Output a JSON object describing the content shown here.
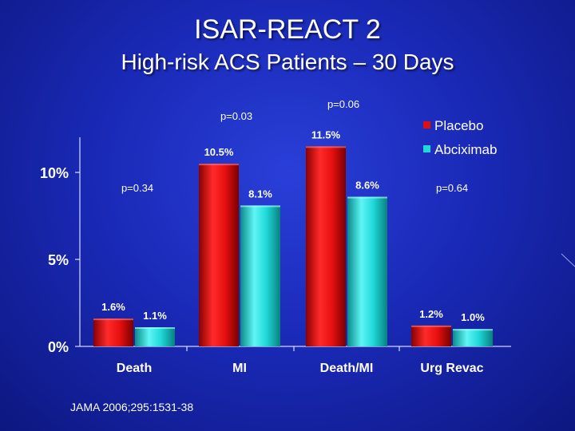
{
  "title": "ISAR-REACT 2",
  "subtitle": "High-risk ACS Patients – 30 Days",
  "citation": "JAMA 2006;295:1531-38",
  "colors": {
    "placebo": "#e01010",
    "abciximab": "#20d8d8"
  },
  "chart_data": {
    "type": "bar",
    "categories": [
      "Death",
      "MI",
      "Death/MI",
      "Urg Revac"
    ],
    "series": [
      {
        "name": "Placebo",
        "values": [
          1.6,
          10.5,
          11.5,
          1.2
        ],
        "labels": [
          "1.6%",
          "10.5%",
          "11.5%",
          "1.2%"
        ]
      },
      {
        "name": "Abciximab",
        "values": [
          1.1,
          8.1,
          8.6,
          1.0
        ],
        "labels": [
          "1.1%",
          "8.1%",
          "8.6%",
          "1.0%"
        ]
      }
    ],
    "p_values": [
      "p=0.34",
      "p=0.03",
      "p=0.06",
      "p=0.64"
    ],
    "yticks": [
      "0%",
      "5%",
      "10%"
    ],
    "ytick_values": [
      0,
      5,
      10
    ],
    "ylim": [
      0,
      12
    ],
    "legend_position": "top-right",
    "grid": false
  }
}
